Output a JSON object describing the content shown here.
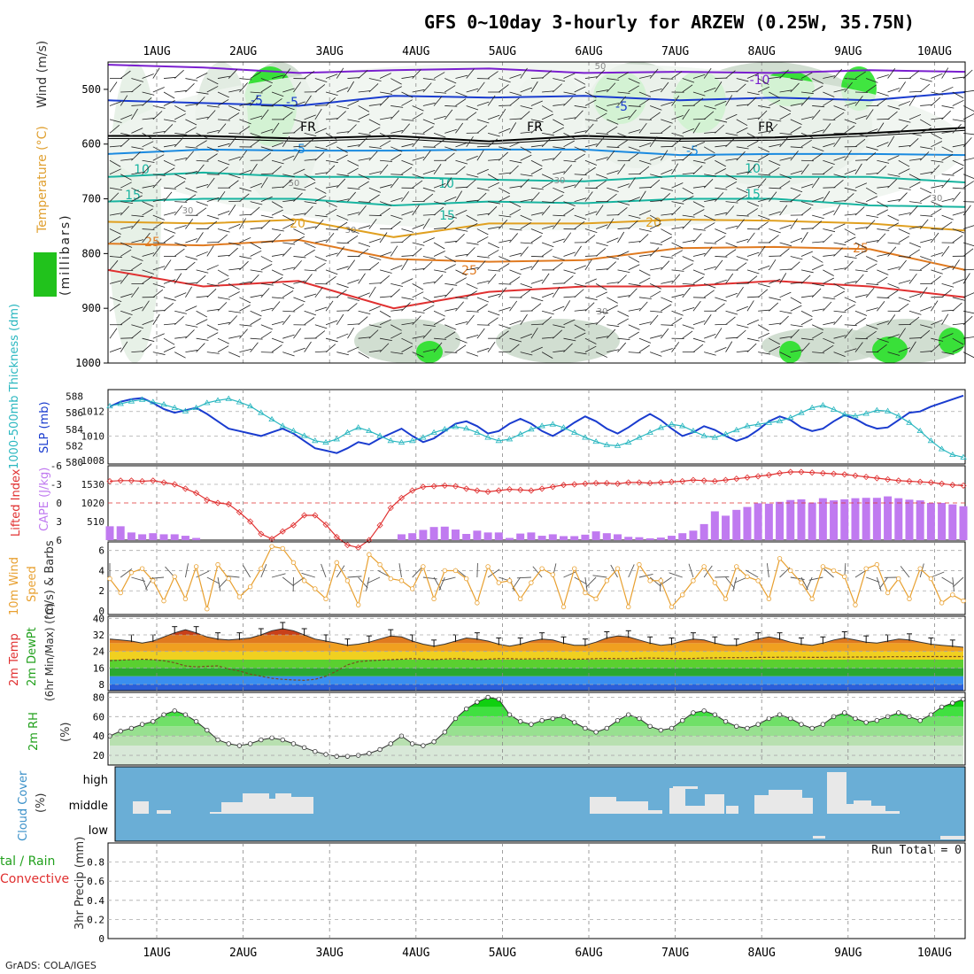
{
  "title": "GFS 0~10day 3-hourly for ARZEW (0.25W, 35.75N)",
  "footer": "GrADS: COLA/IGES",
  "date_labels": [
    "1AUG",
    "2AUG",
    "3AUG",
    "4AUG",
    "5AUG",
    "6AUG",
    "7AUG",
    "8AUG",
    "9AUG",
    "10AUG"
  ],
  "colors": {
    "rh": "#21c21c",
    "temp_cold": "#2b5fd9",
    "temp_warm": "#e07a20",
    "slp": "#1a3ccf",
    "thick": "#2ab7c0",
    "li": "#e03030",
    "cape": "#c07af0",
    "wind": "#e8a030",
    "cloud": "#6aaed6"
  },
  "panel1": {
    "ylabel": "(millibars)",
    "legend_wind": "Wind (m/s)",
    "legend_temp": "Temperature (°C)",
    "legend_rh": "RH (%)",
    "y_ticks": [
      "500",
      "600",
      "700",
      "800",
      "900",
      "1000"
    ],
    "contour_labels": [
      {
        "text": "-10"
      },
      {
        "text": "-5"
      },
      {
        "text": "-5"
      },
      {
        "text": "-5"
      },
      {
        "text": "-5"
      },
      {
        "text": "-5"
      },
      {
        "text": "FR"
      },
      {
        "text": "FR"
      },
      {
        "text": "FR"
      },
      {
        "text": "10"
      },
      {
        "text": "10"
      },
      {
        "text": "10"
      },
      {
        "text": "15"
      },
      {
        "text": "15"
      },
      {
        "text": "15"
      },
      {
        "text": "20"
      },
      {
        "text": "20"
      },
      {
        "text": "25"
      },
      {
        "text": "25"
      },
      {
        "text": "25"
      },
      {
        "text": "50"
      },
      {
        "text": "50"
      },
      {
        "text": "30"
      },
      {
        "text": "30"
      },
      {
        "text": "30"
      },
      {
        "text": "30"
      },
      {
        "text": "30"
      }
    ]
  },
  "panel2": {
    "left_label": "1000-500mb Thickness (dm)",
    "right_label": "SLP (mb)",
    "thick_ticks": [
      "588",
      "586",
      "584",
      "582",
      "580"
    ],
    "slp_ticks": [
      "1012",
      "1010",
      "1008"
    ]
  },
  "panel3": {
    "left_label": "Lifted Index",
    "right_label": "CAPE (J/kg)",
    "li_ticks": [
      "-3",
      "0",
      "3",
      "6",
      "-6"
    ],
    "cape_ticks": [
      "1530",
      "1020",
      "510"
    ]
  },
  "panel4": {
    "label_a": "10m Wind",
    "label_b": "Speed",
    "label_c": "(m/s) & Barbs",
    "ticks": [
      "6",
      "4",
      "2",
      "0"
    ]
  },
  "panel5": {
    "label_a": "2m Temp",
    "label_b": "2m DewPt",
    "label_c": "(6hr Min/Max) (°C)",
    "ticks": [
      "40",
      "32",
      "24",
      "16",
      "8"
    ]
  },
  "panel6": {
    "label_a": "2m RH",
    "label_b": "(%)",
    "ticks": [
      "80",
      "60",
      "40",
      "20"
    ]
  },
  "panel7": {
    "label_a": "Cloud Cover",
    "label_b": "(%)",
    "levels": [
      "high",
      "middle",
      "low"
    ]
  },
  "panel8": {
    "label_a": "tal / Rain",
    "label_b": "Convective",
    "label_c": "3hr Precip (mm)",
    "run_total": "Run Total = 0",
    "ticks": [
      "0.8",
      "0.6",
      "0.4",
      "0.2",
      "0"
    ]
  },
  "chart_data": {
    "type": "meteogram",
    "time_steps": 80,
    "step_hours": 3,
    "slp_mb": [
      1012.4,
      1012.8,
      1013.0,
      1013.1,
      1012.7,
      1012.2,
      1011.9,
      1012.1,
      1012.3,
      1011.8,
      1011.2,
      1010.6,
      1010.4,
      1010.2,
      1010.0,
      1010.3,
      1010.6,
      1010.2,
      1009.6,
      1009.0,
      1008.8,
      1008.6,
      1009.0,
      1009.5,
      1009.3,
      1009.8,
      1010.2,
      1010.6,
      1010.0,
      1009.5,
      1009.8,
      1010.4,
      1011.0,
      1011.2,
      1010.8,
      1010.2,
      1010.4,
      1011.0,
      1011.4,
      1011.0,
      1010.4,
      1010.0,
      1010.5,
      1011.1,
      1011.6,
      1011.2,
      1010.6,
      1010.2,
      1010.7,
      1011.3,
      1011.8,
      1011.3,
      1010.6,
      1010.0,
      1010.3,
      1010.8,
      1010.5,
      1010.0,
      1009.6,
      1009.9,
      1010.5,
      1011.2,
      1011.6,
      1011.3,
      1010.7,
      1010.4,
      1010.6,
      1011.2,
      1011.7,
      1011.4,
      1010.9,
      1010.6,
      1010.7,
      1011.3,
      1011.9,
      1012.0,
      1012.4,
      1012.7,
      1013.0,
      1013.3
    ],
    "thickness_dm": [
      586.8,
      587.1,
      587.4,
      587.6,
      587.3,
      587.0,
      586.6,
      586.2,
      586.6,
      587.2,
      587.5,
      587.7,
      587.3,
      586.8,
      586.0,
      585.2,
      584.4,
      583.8,
      583.2,
      582.6,
      582.4,
      582.8,
      583.6,
      584.2,
      583.8,
      583.2,
      582.6,
      582.4,
      582.6,
      583.0,
      583.6,
      584.0,
      584.3,
      584.1,
      583.6,
      583.0,
      582.6,
      582.8,
      583.4,
      584.0,
      584.4,
      584.6,
      584.2,
      583.6,
      583.0,
      582.5,
      582.1,
      582.0,
      582.4,
      583.0,
      583.6,
      584.2,
      584.6,
      584.4,
      583.8,
      583.2,
      583.0,
      583.4,
      583.9,
      584.4,
      584.6,
      584.8,
      585.0,
      585.4,
      586.0,
      586.6,
      586.9,
      586.4,
      585.8,
      585.6,
      585.9,
      586.3,
      586.2,
      585.6,
      584.8,
      583.8,
      582.6,
      581.6,
      580.9,
      580.6
    ],
    "lifted_index": [
      -3.5,
      -3.6,
      -3.6,
      -3.5,
      -3.6,
      -3.3,
      -3.0,
      -2.3,
      -1.6,
      -0.5,
      0.0,
      0.2,
      1.5,
      3.0,
      5.0,
      5.8,
      4.6,
      3.6,
      2.0,
      2.0,
      3.5,
      5.5,
      6.8,
      7.2,
      6.0,
      3.6,
      0.8,
      -0.8,
      -2.0,
      -2.6,
      -2.7,
      -2.8,
      -2.7,
      -2.3,
      -2.0,
      -1.8,
      -2.0,
      -2.2,
      -2.1,
      -2.0,
      -2.3,
      -2.6,
      -2.9,
      -3.0,
      -3.1,
      -3.2,
      -3.2,
      -3.1,
      -3.3,
      -3.3,
      -3.2,
      -3.3,
      -3.4,
      -3.5,
      -3.7,
      -3.6,
      -3.5,
      -3.7,
      -3.9,
      -4.1,
      -4.3,
      -4.5,
      -4.8,
      -5.0,
      -5.0,
      -4.9,
      -4.8,
      -4.7,
      -4.6,
      -4.4,
      -4.2,
      -4.0,
      -3.8,
      -3.6,
      -3.5,
      -3.4,
      -3.3,
      -3.1,
      -2.9,
      -2.8
    ],
    "cape_jkg": [
      380,
      380,
      210,
      160,
      190,
      160,
      160,
      120,
      60,
      0,
      0,
      0,
      0,
      0,
      0,
      0,
      0,
      0,
      0,
      0,
      0,
      0,
      0,
      0,
      0,
      0,
      0,
      160,
      190,
      280,
      360,
      370,
      290,
      170,
      260,
      210,
      210,
      60,
      180,
      210,
      120,
      160,
      110,
      110,
      150,
      240,
      190,
      160,
      90,
      80,
      50,
      70,
      120,
      190,
      260,
      440,
      790,
      670,
      830,
      910,
      1010,
      1000,
      1050,
      1100,
      1120,
      1030,
      1150,
      1090,
      1120,
      1150,
      1160,
      1160,
      1200,
      1150,
      1110,
      1090,
      1020,
      1020,
      980,
      930
    ],
    "wind_speed_ms": [
      3.2,
      1.8,
      3.8,
      4.2,
      3.0,
      1.0,
      3.4,
      1.2,
      4.4,
      0.2,
      4.6,
      3.2,
      1.4,
      2.4,
      4.2,
      6.4,
      6.2,
      4.8,
      3.0,
      2.2,
      1.2,
      4.8,
      3.0,
      0.6,
      5.6,
      4.6,
      3.2,
      3.0,
      2.2,
      4.4,
      1.2,
      4.0,
      4.0,
      3.2,
      0.8,
      4.4,
      2.8,
      3.0,
      1.2,
      2.8,
      4.2,
      3.6,
      0.4,
      4.2,
      1.8,
      1.2,
      3.0,
      4.2,
      0.4,
      4.6,
      3.0,
      3.0,
      0.4,
      1.6,
      3.0,
      4.4,
      2.8,
      1.2,
      4.4,
      3.4,
      3.0,
      1.2,
      5.2,
      4.0,
      2.8,
      1.2,
      4.4,
      4.0,
      3.4,
      0.6,
      4.2,
      4.6,
      1.8,
      3.2,
      1.2,
      4.2,
      3.2,
      0.8,
      1.6,
      1.0
    ],
    "temp_2m_c": [
      30,
      29.5,
      29,
      28,
      29,
      31,
      33,
      34.5,
      33,
      31,
      30,
      29.5,
      30,
      30.5,
      32,
      34,
      35,
      34,
      32,
      30,
      29,
      28,
      27,
      27.5,
      28.5,
      30,
      31.5,
      31,
      29,
      27.5,
      26.5,
      27.5,
      29,
      30.5,
      30,
      29,
      27.5,
      26.5,
      27.5,
      29,
      30,
      29.5,
      28,
      27,
      27,
      28.5,
      30.5,
      31.5,
      31,
      29.5,
      28,
      27,
      27.5,
      29,
      30,
      29.5,
      28,
      27,
      27,
      28.5,
      30,
      31,
      30,
      28.5,
      27.5,
      27,
      28,
      29.5,
      30.5,
      29.5,
      28.5,
      28,
      29,
      30,
      29.5,
      28.5,
      27.5,
      27,
      26.5,
      26
    ],
    "dewpt_2m_c": [
      19.5,
      19.8,
      20,
      20.2,
      20.0,
      19.5,
      18.5,
      17.0,
      16.5,
      16.8,
      17.0,
      15.5,
      14.5,
      13.0,
      12.0,
      11.0,
      10.5,
      10.2,
      10.0,
      10.5,
      12.0,
      14.5,
      17.5,
      19.0,
      19.5,
      19.8,
      20,
      20.2,
      20.5,
      20.3,
      20.0,
      20.3,
      20.5,
      20.3,
      20.0,
      20.2,
      20.5,
      20.5,
      20.3,
      20.4,
      20.5,
      20.5,
      20.3,
      20.2,
      20.3,
      20.5,
      20.6,
      20.5,
      20.5,
      20.7,
      20.8,
      20.7,
      20.6,
      20.5,
      20.6,
      20.8,
      20.9,
      21.0,
      21.0,
      21.0,
      21.1,
      21.1,
      21.2,
      21.2,
      21.2,
      21.1,
      21.1,
      21.2,
      21.2,
      21.3,
      21.3,
      21.3,
      21.4,
      21.4,
      21.4,
      21.5,
      21.5,
      21.5,
      21.5,
      21.5
    ],
    "rh_2m_pct": [
      40,
      45,
      48,
      52,
      55,
      62,
      66,
      62,
      55,
      46,
      36,
      32,
      30,
      32,
      36,
      38,
      36,
      32,
      28,
      24,
      21,
      19,
      19,
      20,
      22,
      26,
      32,
      40,
      32,
      30,
      34,
      44,
      58,
      68,
      75,
      80,
      78,
      62,
      55,
      52,
      56,
      58,
      60,
      54,
      48,
      44,
      48,
      56,
      62,
      58,
      50,
      46,
      48,
      56,
      64,
      66,
      62,
      55,
      50,
      48,
      52,
      58,
      62,
      58,
      52,
      48,
      52,
      60,
      64,
      58,
      54,
      56,
      60,
      64,
      60,
      56,
      62,
      70,
      74,
      78
    ],
    "cloud_middle_pct": [
      0,
      0,
      0,
      15,
      18,
      0,
      0,
      0,
      0,
      0,
      0,
      0,
      0,
      5,
      15,
      25,
      25,
      35,
      30,
      35,
      35,
      20,
      25,
      0,
      0,
      0,
      0,
      0,
      0,
      0,
      0,
      0,
      0,
      0,
      0,
      0,
      0,
      0,
      0,
      0,
      0,
      0,
      0,
      0,
      0,
      0,
      0,
      0,
      0,
      0,
      0,
      0,
      0,
      0,
      0,
      0,
      0,
      0,
      0,
      0,
      0,
      0,
      0,
      0,
      0,
      0,
      0,
      0,
      0,
      0,
      0,
      0,
      0,
      0,
      0,
      0,
      0,
      0,
      0,
      0
    ],
    "precip_3hr_mm": [
      0,
      0,
      0,
      0,
      0,
      0,
      0,
      0,
      0,
      0,
      0,
      0,
      0,
      0,
      0,
      0,
      0,
      0,
      0,
      0,
      0,
      0,
      0,
      0,
      0,
      0,
      0,
      0,
      0,
      0,
      0,
      0,
      0,
      0,
      0,
      0,
      0,
      0,
      0,
      0,
      0,
      0,
      0,
      0,
      0,
      0,
      0,
      0,
      0,
      0,
      0,
      0,
      0,
      0,
      0,
      0,
      0,
      0,
      0,
      0,
      0,
      0,
      0,
      0,
      0,
      0,
      0,
      0,
      0,
      0,
      0,
      0,
      0,
      0,
      0,
      0,
      0,
      0,
      0,
      0
    ],
    "axes": {
      "pressure_mb_range": [
        450,
        1000
      ],
      "slp_mb_range": [
        1008,
        1013.5
      ],
      "thickness_dm_range": [
        580,
        588.6
      ],
      "lifted_index_range": [
        6,
        -6
      ],
      "cape_range": [
        0,
        2040
      ],
      "wind_ms_range": [
        0,
        6.5
      ],
      "temp_c_range": [
        5,
        41
      ],
      "rh_pct_range": [
        10,
        85
      ],
      "precip_mm_range": [
        0,
        1.0
      ]
    }
  }
}
